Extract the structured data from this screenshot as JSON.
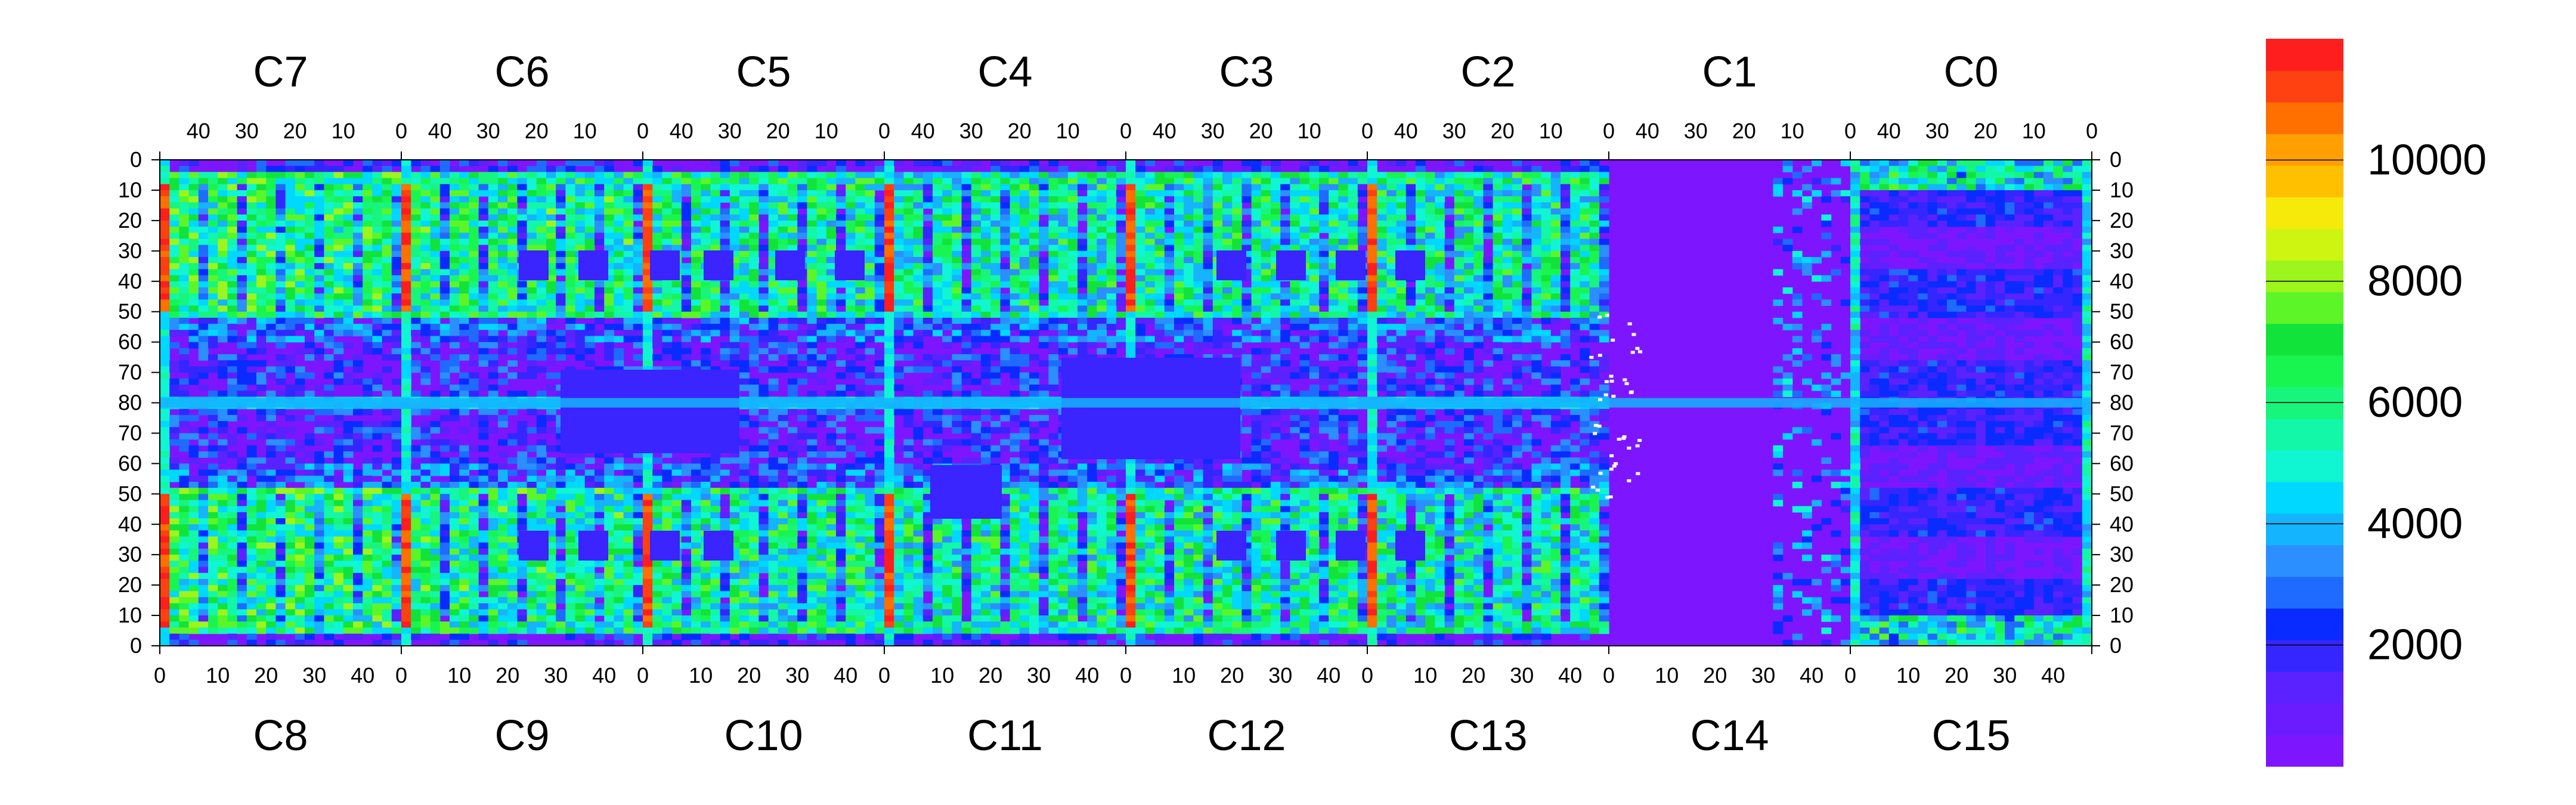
{
  "chart_data": {
    "type": "heatmap",
    "chips_top": [
      "C7",
      "C6",
      "C5",
      "C4",
      "C3",
      "C2",
      "C1",
      "C0"
    ],
    "chips_bottom": [
      "C8",
      "C9",
      "C10",
      "C11",
      "C12",
      "C13",
      "C14",
      "C15"
    ],
    "top_x_ticks_per_chip": [
      "40",
      "30",
      "20",
      "10",
      "0"
    ],
    "bottom_x_ticks_per_chip": [
      "0",
      "10",
      "20",
      "30",
      "40"
    ],
    "y_ticks": [
      "0",
      "10",
      "20",
      "30",
      "40",
      "50",
      "60",
      "70",
      "80",
      "70",
      "60",
      "50",
      "40",
      "30",
      "20",
      "10",
      "0"
    ],
    "colorbar": {
      "min": 0,
      "max": 12000,
      "ticks": [
        "2000",
        "4000",
        "6000",
        "8000",
        "10000"
      ],
      "colors": [
        "#7d16ff",
        "#6b1cff",
        "#5a22ff",
        "#3526ff",
        "#0a2bff",
        "#1f6bff",
        "#2b8fff",
        "#14b4ff",
        "#00d8ff",
        "#10f5d2",
        "#12f7a8",
        "#17f57c",
        "#19f550",
        "#12e33a",
        "#5cf528",
        "#9cf51c",
        "#cef512",
        "#f5ea0a",
        "#ffc000",
        "#ffa000",
        "#ff7000",
        "#ff4010",
        "#ff1e1e"
      ]
    },
    "grid": false
  }
}
